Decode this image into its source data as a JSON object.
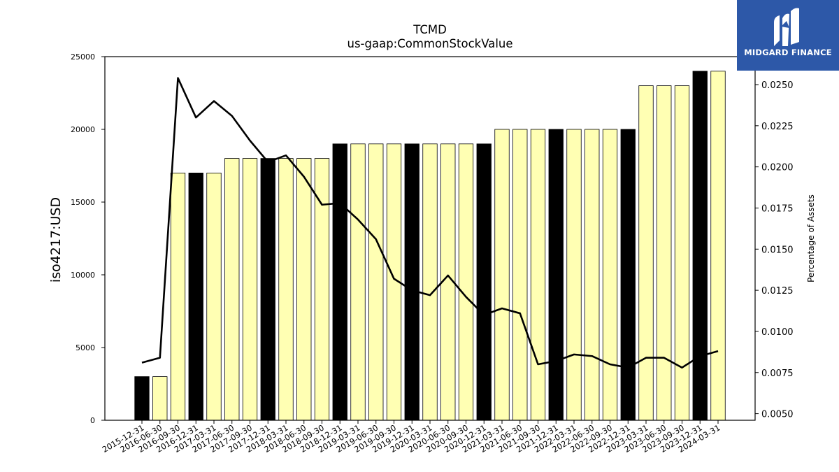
{
  "logo": {
    "text": "MIDGARD FINANCE"
  },
  "chart_data": {
    "type": "bar",
    "title": "TCMD",
    "subtitle": "us-gaap:CommonStockValue",
    "ylabel": "iso4217:USD",
    "y2label": "Percentage of Assets",
    "ylim": [
      0,
      25000
    ],
    "y2lim": [
      0.0046,
      0.0267
    ],
    "yticks": [
      "0",
      "5000",
      "10000",
      "15000",
      "20000",
      "25000"
    ],
    "y2ticks": [
      "0.0050",
      "0.0075",
      "0.0100",
      "0.0125",
      "0.0150",
      "0.0175",
      "0.0200",
      "0.0225",
      "0.0250"
    ],
    "categories": [
      "2015-12-31",
      "2016-06-30",
      "2016-09-30",
      "2016-12-31",
      "2017-03-31",
      "2017-06-30",
      "2017-09-30",
      "2017-12-31",
      "2018-03-31",
      "2018-06-30",
      "2018-09-30",
      "2018-12-31",
      "2019-03-31",
      "2019-06-30",
      "2019-09-30",
      "2019-12-31",
      "2020-03-31",
      "2020-06-30",
      "2020-09-30",
      "2020-12-31",
      "2021-03-31",
      "2021-06-30",
      "2021-09-30",
      "2021-12-31",
      "2022-03-31",
      "2022-06-30",
      "2022-09-30",
      "2022-12-31",
      "2023-03-31",
      "2023-06-30",
      "2023-09-30",
      "2023-12-31",
      "2024-03-31"
    ],
    "series": [
      {
        "values": [
          3000,
          3000,
          17000,
          17000,
          17000,
          18000,
          18000,
          18000,
          18000,
          18000,
          18000,
          19000,
          19000,
          19000,
          19000,
          19000,
          19000,
          19000,
          19000,
          19000,
          20000,
          20000,
          20000,
          20000,
          20000,
          20000,
          20000,
          20000,
          23000,
          23000,
          23000,
          24000,
          24000
        ]
      },
      {
        "axis": "right",
        "values": [
          0.0081,
          0.0084,
          0.0254,
          0.023,
          0.024,
          0.0231,
          0.0216,
          0.0203,
          0.0207,
          0.0194,
          0.0177,
          0.0178,
          0.0168,
          0.0156,
          0.0132,
          0.0125,
          0.0122,
          0.0134,
          0.0121,
          0.011,
          0.0114,
          0.0111,
          0.008,
          0.0082,
          0.0086,
          0.0085,
          0.008,
          0.0078,
          0.0084,
          0.0084,
          0.0078,
          0.0085,
          0.0088
        ]
      }
    ],
    "bar_highlight": [
      true,
      false,
      false,
      true,
      false,
      false,
      false,
      true,
      false,
      false,
      false,
      true,
      false,
      false,
      false,
      true,
      false,
      false,
      false,
      true,
      false,
      false,
      false,
      true,
      false,
      false,
      false,
      true,
      false,
      false,
      false,
      true,
      false
    ],
    "colors": {
      "bar_fill": "#ffffb3",
      "bar_highlight": "#000000",
      "bar_edge": "#000000",
      "line": "#000000"
    },
    "grid": false,
    "legend": "none"
  }
}
